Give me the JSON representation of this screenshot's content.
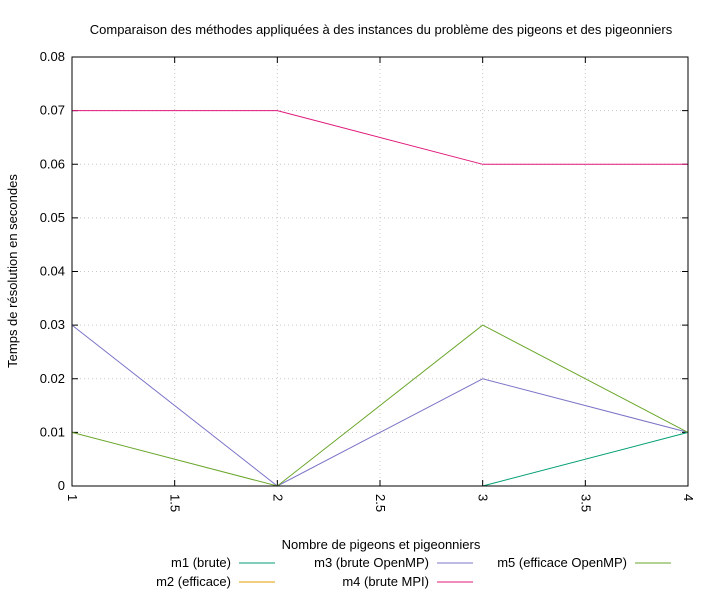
{
  "chart_data": {
    "type": "line",
    "title": "Comparaison des méthodes appliquées à des instances du problème des pigeons et des pigeonniers",
    "xlabel": "Nombre de pigeons et pigeonniers",
    "ylabel": "Temps de résolution en secondes",
    "xlim": [
      1,
      4
    ],
    "ylim": [
      0,
      0.08
    ],
    "x_ticks": [
      "1",
      "1.5",
      "2",
      "2.5",
      "3",
      "3.5",
      "4"
    ],
    "y_ticks": [
      "0",
      "0.01",
      "0.02",
      "0.03",
      "0.04",
      "0.05",
      "0.06",
      "0.07",
      "0.08"
    ],
    "grid": true,
    "legend_position": "bottom",
    "x": [
      1,
      2,
      3,
      4
    ],
    "series": [
      {
        "name": "m1 (brute)",
        "color": "#009e73",
        "values": [
          0,
          0,
          0,
          0.01
        ]
      },
      {
        "name": "m2 (efficace)",
        "color": "#e69f00",
        "values": [
          0,
          0,
          0,
          0
        ]
      },
      {
        "name": "m3 (brute OpenMP)",
        "color": "#7b74c7",
        "values": [
          0.03,
          0,
          0.02,
          0.01
        ]
      },
      {
        "name": "m4 (brute MPI)",
        "color": "#e0187a",
        "values": [
          0.07,
          0.07,
          0.06,
          0.06
        ]
      },
      {
        "name": "m5 (efficace OpenMP)",
        "color": "#6aa62a",
        "values": [
          0.01,
          0,
          0.03,
          0.01
        ]
      }
    ]
  }
}
